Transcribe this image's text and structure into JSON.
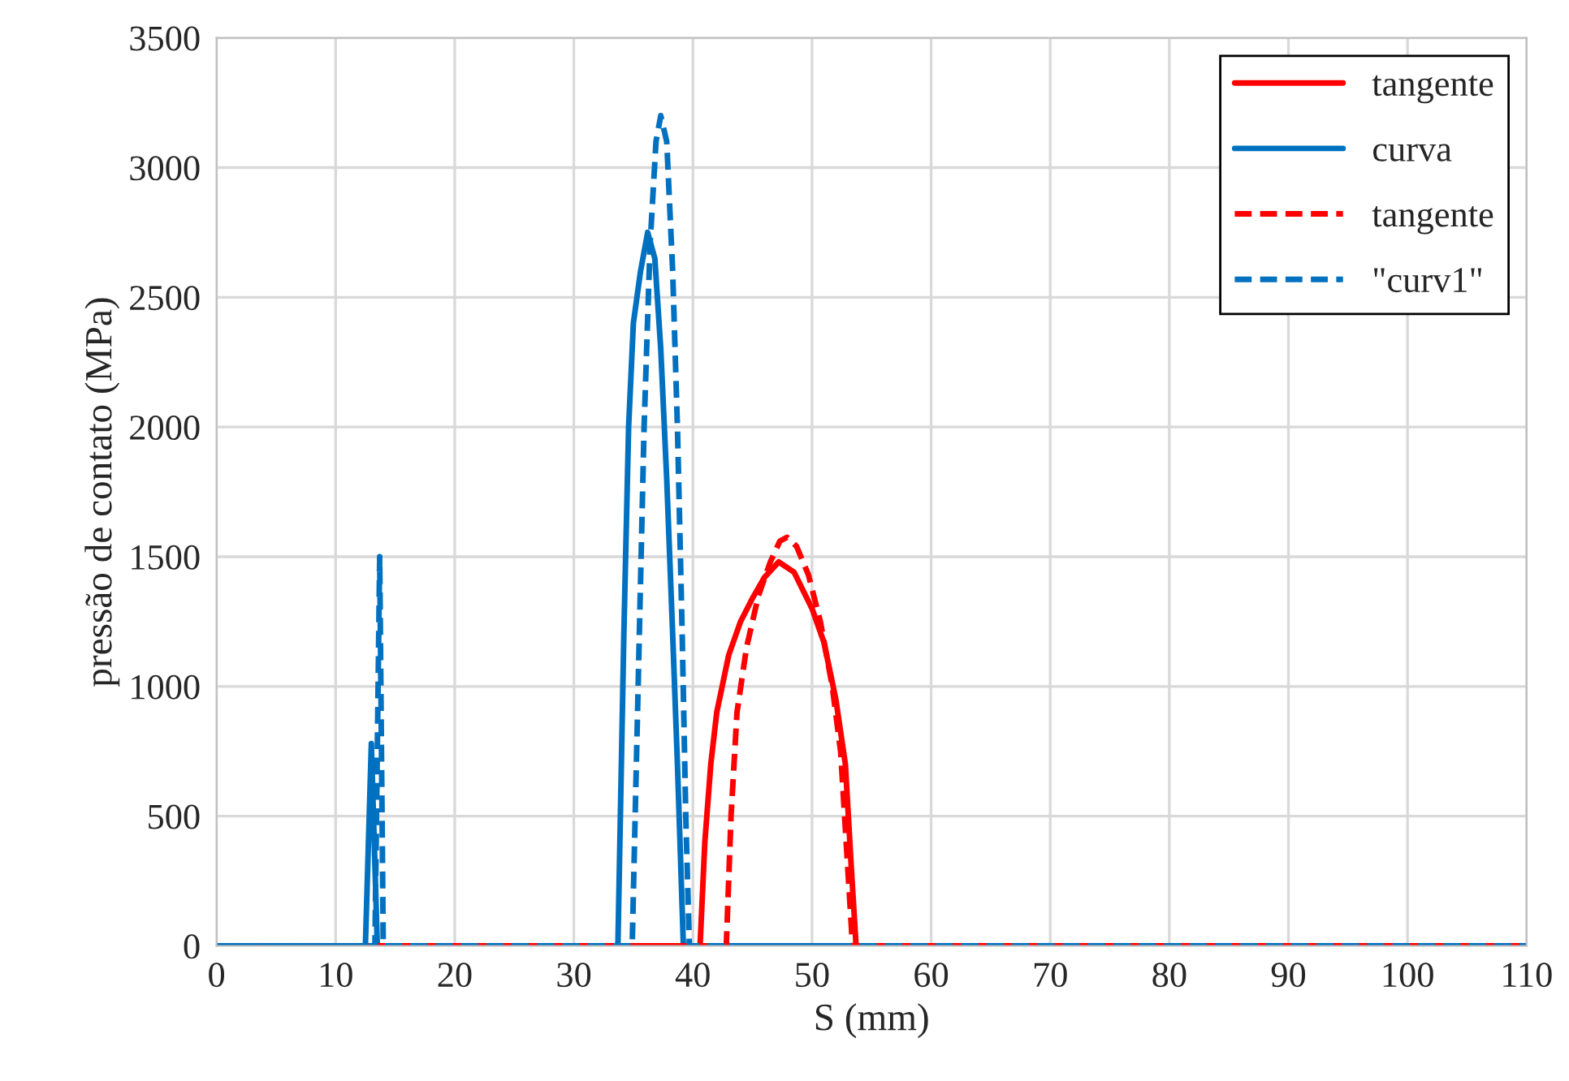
{
  "chart_data": {
    "type": "line",
    "xlabel": "S (mm)",
    "ylabel": "pressão de contato (MPa)",
    "xlim": [
      0,
      110
    ],
    "ylim": [
      0,
      3500
    ],
    "xticks": [
      0,
      10,
      20,
      30,
      40,
      50,
      60,
      70,
      80,
      90,
      100,
      110
    ],
    "yticks": [
      0,
      500,
      1000,
      1500,
      2000,
      2500,
      3000,
      3500
    ],
    "grid": true,
    "legend": "top right",
    "series": [
      {
        "name": "tangente",
        "color": "#ff0000",
        "line_style": "solid",
        "x": [
          0,
          40.6,
          41.0,
          41.5,
          42.0,
          43.0,
          44.0,
          45.0,
          46.0,
          47.2,
          48.5,
          50.0,
          51.0,
          52.0,
          52.8,
          53.3,
          53.7,
          110
        ],
        "values": [
          0,
          0,
          400,
          700,
          900,
          1120,
          1250,
          1340,
          1420,
          1480,
          1440,
          1300,
          1170,
          950,
          700,
          300,
          0,
          0
        ]
      },
      {
        "name": "curva",
        "color": "#0070c0",
        "line_style": "solid",
        "x": [
          0,
          12.5,
          13.0,
          13.5,
          33.7,
          34.2,
          34.6,
          35.0,
          35.6,
          36.2,
          36.8,
          37.3,
          37.8,
          38.3,
          38.7,
          39.2,
          110
        ],
        "values": [
          0,
          0,
          780,
          0,
          0,
          1200,
          2000,
          2400,
          2600,
          2750,
          2650,
          2300,
          1800,
          1200,
          700,
          0,
          0
        ]
      },
      {
        "name": "tangente",
        "color": "#ff0000",
        "line_style": "dashed",
        "x": [
          0,
          42.8,
          43.2,
          43.7,
          44.5,
          45.5,
          46.5,
          47.3,
          47.9,
          48.7,
          49.7,
          50.7,
          51.7,
          52.4,
          53.0,
          53.4,
          110
        ],
        "values": [
          0,
          0,
          500,
          900,
          1150,
          1350,
          1480,
          1560,
          1575,
          1540,
          1430,
          1250,
          1000,
          750,
          300,
          0,
          0
        ]
      },
      {
        "name": "\"curv1\"",
        "color": "#0070c0",
        "line_style": "dashed",
        "x": [
          0,
          13.3,
          13.7,
          14.0,
          34.9,
          35.4,
          35.9,
          36.4,
          36.9,
          37.3,
          37.8,
          38.3,
          38.7,
          39.1,
          39.4,
          39.7,
          110
        ],
        "values": [
          0,
          0,
          1500,
          0,
          0,
          1000,
          2000,
          2700,
          3100,
          3200,
          3100,
          2600,
          2000,
          1200,
          500,
          0,
          0
        ]
      }
    ]
  }
}
